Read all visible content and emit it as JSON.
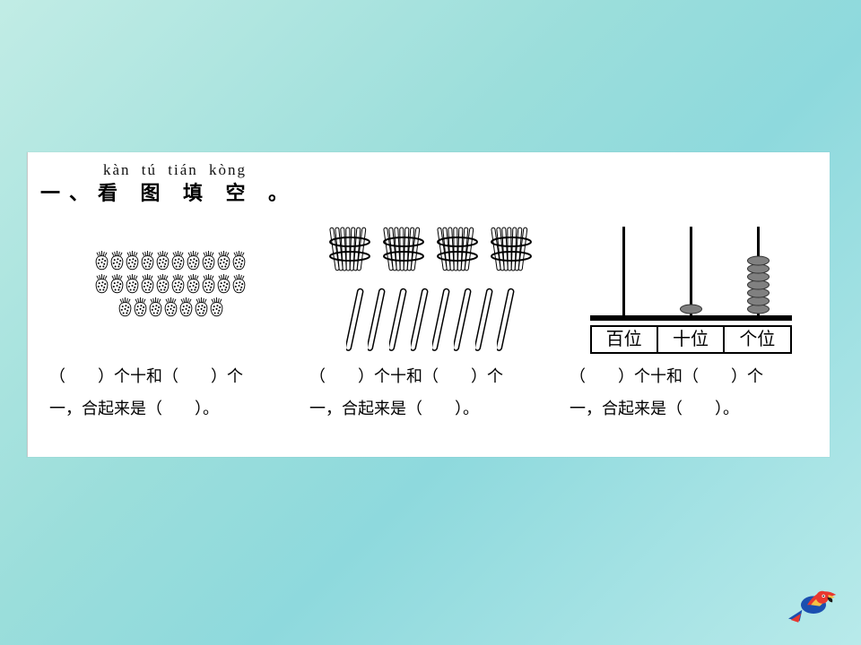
{
  "pinyin": {
    "p1": "kàn",
    "p2": "tú",
    "p3": "tián",
    "p4": "kòng"
  },
  "heading": "一、看 图 填 空 。",
  "caption_template_l1": "（　　）个十和（　　）个",
  "caption_template_l2": "一，合起来是（　　）。",
  "columns": {
    "strawberries": {
      "type": "strawberries",
      "rows": [
        10,
        10,
        7
      ],
      "stroke": "#000000",
      "fill": "#ffffff"
    },
    "sticks": {
      "type": "sticks",
      "bundles": 4,
      "loose": 8,
      "stroke": "#000000",
      "fill": "#ffffff"
    },
    "abacus": {
      "type": "abacus",
      "rods": [
        {
          "label": "百位",
          "beads": 0
        },
        {
          "label": "十位",
          "beads": 1
        },
        {
          "label": "个位",
          "beads": 7
        }
      ],
      "bead_color": "#808080",
      "bead_outline": "#303030",
      "frame_color": "#000000",
      "rod_color": "#000000",
      "label_font_size": 20
    }
  },
  "parrot": {
    "body": "#1b4fb0",
    "wing": "#e8382f",
    "wing2": "#f6c144",
    "tail": "#1b4fb0",
    "tail2": "#e8382f",
    "beak": "#1a1a1a",
    "head": "#e8382f"
  }
}
